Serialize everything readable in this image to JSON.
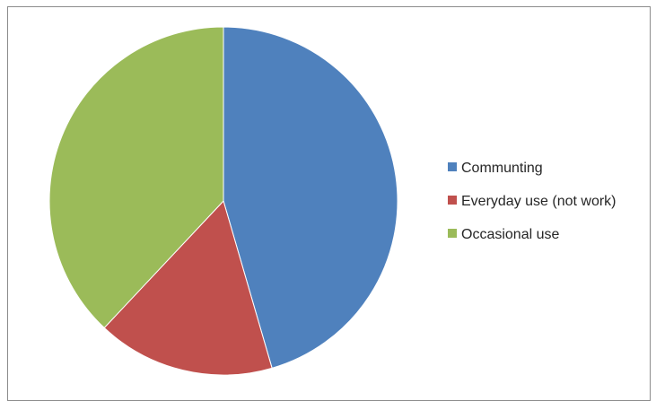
{
  "chart_data": {
    "type": "pie",
    "title": "",
    "categories": [
      "Communting",
      "Everyday use (not work)",
      "Occasional use"
    ],
    "values": [
      45.5,
      16.5,
      38.0
    ],
    "value_unit": "percent (estimated)",
    "colors": [
      "#4f81bd",
      "#c0504d",
      "#9bbb59"
    ],
    "start_angle": "12 o'clock, clockwise",
    "legend": {
      "position": "right",
      "entries": [
        "Communting",
        "Everyday use (not work)",
        "Occasional use"
      ]
    }
  }
}
